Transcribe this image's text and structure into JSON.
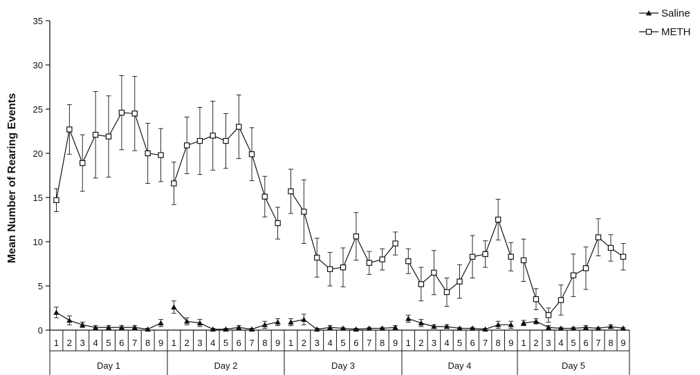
{
  "chart_data": {
    "type": "line",
    "title": "",
    "xlabel": "",
    "ylabel": "Mean Number of Rearing Events",
    "ylim": [
      0,
      35
    ],
    "yticks": [
      0,
      5,
      10,
      15,
      20,
      25,
      30,
      35
    ],
    "grid": false,
    "legend_position": "top-right",
    "groups": [
      "Day 1",
      "Day 2",
      "Day 3",
      "Day 4",
      "Day 5"
    ],
    "x_labels": [
      "1",
      "2",
      "3",
      "4",
      "5",
      "6",
      "7",
      "8",
      "9"
    ],
    "series": [
      {
        "name": "Saline",
        "marker": "triangle",
        "color": "#111111",
        "values": [
          [
            2.0,
            1.1,
            0.6,
            0.3,
            0.3,
            0.3,
            0.3,
            0.1,
            0.8
          ],
          [
            2.6,
            1.0,
            0.8,
            0.1,
            0.1,
            0.3,
            0.1,
            0.6,
            0.9
          ],
          [
            0.9,
            1.2,
            0.1,
            0.3,
            0.2,
            0.1,
            0.2,
            0.2,
            0.3
          ],
          [
            1.3,
            0.8,
            0.4,
            0.4,
            0.2,
            0.2,
            0.1,
            0.6,
            0.6
          ],
          [
            0.8,
            1.0,
            0.3,
            0.2,
            0.2,
            0.3,
            0.2,
            0.4,
            0.2
          ]
        ],
        "errors": [
          [
            0.6,
            0.5,
            0.3,
            0.2,
            0.2,
            0.2,
            0.2,
            0.1,
            0.4
          ],
          [
            0.7,
            0.4,
            0.4,
            0.1,
            0.1,
            0.2,
            0.1,
            0.4,
            0.4
          ],
          [
            0.4,
            0.6,
            0.1,
            0.2,
            0.1,
            0.1,
            0.1,
            0.1,
            0.2
          ],
          [
            0.4,
            0.4,
            0.2,
            0.2,
            0.1,
            0.1,
            0.1,
            0.4,
            0.4
          ],
          [
            0.3,
            0.3,
            0.2,
            0.1,
            0.1,
            0.2,
            0.1,
            0.2,
            0.1
          ]
        ]
      },
      {
        "name": "METH",
        "marker": "square",
        "color": "#111111",
        "values": [
          [
            14.7,
            22.7,
            18.9,
            22.1,
            21.9,
            24.6,
            24.5,
            20.0,
            19.8
          ],
          [
            16.6,
            20.9,
            21.4,
            22.0,
            21.4,
            23.0,
            19.9,
            15.1,
            12.1
          ],
          [
            15.7,
            13.4,
            8.2,
            6.9,
            7.1,
            10.6,
            7.6,
            8.0,
            9.8
          ],
          [
            7.8,
            5.2,
            6.5,
            4.3,
            5.5,
            8.3,
            8.6,
            12.5,
            8.3
          ],
          [
            7.9,
            3.5,
            1.7,
            3.4,
            6.2,
            7.0,
            10.5,
            9.3,
            8.3
          ]
        ],
        "errors": [
          [
            1.3,
            2.8,
            3.2,
            4.9,
            4.6,
            4.2,
            4.2,
            3.4,
            3.0
          ],
          [
            2.4,
            3.2,
            3.8,
            3.9,
            3.1,
            3.6,
            3.0,
            2.3,
            1.8
          ],
          [
            2.5,
            3.6,
            2.2,
            1.9,
            2.2,
            2.7,
            1.3,
            1.2,
            1.3
          ],
          [
            1.4,
            1.9,
            2.5,
            1.6,
            1.9,
            2.4,
            1.5,
            2.3,
            1.6
          ],
          [
            2.4,
            1.2,
            0.8,
            1.7,
            2.4,
            2.4,
            2.1,
            1.5,
            1.5
          ]
        ]
      }
    ]
  }
}
